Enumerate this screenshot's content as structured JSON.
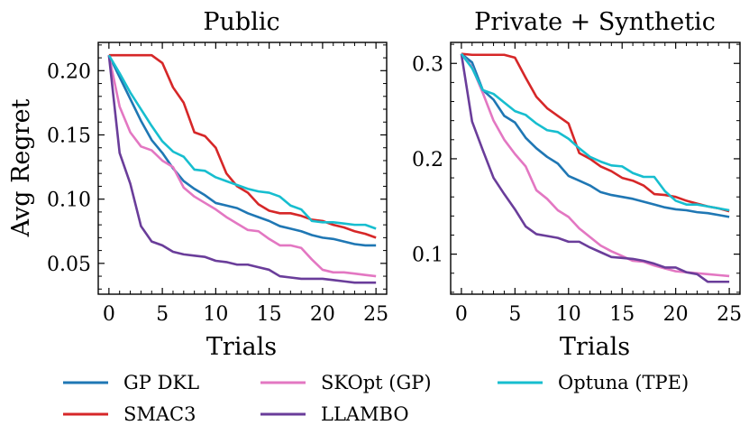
{
  "legend": {
    "items": [
      {
        "label": "GP DKL",
        "color": "#1f77b4"
      },
      {
        "label": "SMAC3",
        "color": "#d62728"
      },
      {
        "label": "SKOpt (GP)",
        "color": "#e377c2"
      },
      {
        "label": "LLAMBO",
        "color": "#6a3d9a"
      },
      {
        "label": "Optuna (TPE)",
        "color": "#17becf"
      }
    ]
  },
  "chart_data": [
    {
      "type": "line",
      "title": "Public",
      "xlabel": "Trials",
      "ylabel": "Avg Regret",
      "xlim": [
        -1,
        26
      ],
      "ylim": [
        0.026,
        0.222
      ],
      "xticks": [
        0,
        5,
        10,
        15,
        20,
        25
      ],
      "xticklabels": [
        "0",
        "5",
        "10",
        "15",
        "20",
        "25"
      ],
      "yticks": [
        0.05,
        0.1,
        0.15,
        0.2
      ],
      "yticklabels": [
        "0.05",
        "0.10",
        "0.15",
        "0.20"
      ],
      "x": [
        0,
        1,
        2,
        3,
        4,
        5,
        6,
        7,
        8,
        9,
        10,
        11,
        12,
        13,
        14,
        15,
        16,
        17,
        18,
        19,
        20,
        21,
        22,
        23,
        24,
        25
      ],
      "series": [
        {
          "name": "GP DKL",
          "color": "#1f77b4",
          "values": [
            0.212,
            0.195,
            0.178,
            0.161,
            0.146,
            0.136,
            0.124,
            0.114,
            0.108,
            0.103,
            0.097,
            0.095,
            0.093,
            0.089,
            0.086,
            0.083,
            0.079,
            0.077,
            0.075,
            0.072,
            0.07,
            0.069,
            0.067,
            0.065,
            0.064,
            0.064
          ]
        },
        {
          "name": "SMAC3",
          "color": "#d62728",
          "values": [
            0.212,
            0.212,
            0.212,
            0.212,
            0.212,
            0.206,
            0.187,
            0.175,
            0.152,
            0.149,
            0.14,
            0.12,
            0.11,
            0.105,
            0.096,
            0.091,
            0.089,
            0.089,
            0.087,
            0.084,
            0.083,
            0.08,
            0.078,
            0.075,
            0.073,
            0.07
          ]
        },
        {
          "name": "SKOpt (GP)",
          "color": "#e377c2",
          "values": [
            0.212,
            0.172,
            0.152,
            0.141,
            0.138,
            0.13,
            0.125,
            0.109,
            0.102,
            0.097,
            0.092,
            0.086,
            0.081,
            0.076,
            0.075,
            0.069,
            0.064,
            0.064,
            0.062,
            0.053,
            0.045,
            0.043,
            0.043,
            0.042,
            0.041,
            0.04
          ]
        },
        {
          "name": "LLAMBO",
          "color": "#6a3d9a",
          "values": [
            0.212,
            0.136,
            0.112,
            0.079,
            0.067,
            0.064,
            0.059,
            0.057,
            0.056,
            0.055,
            0.052,
            0.051,
            0.049,
            0.049,
            0.047,
            0.045,
            0.04,
            0.039,
            0.038,
            0.038,
            0.038,
            0.037,
            0.036,
            0.035,
            0.035,
            0.035
          ]
        },
        {
          "name": "Optuna (TPE)",
          "color": "#17becf",
          "values": [
            0.212,
            0.198,
            0.183,
            0.17,
            0.157,
            0.145,
            0.137,
            0.133,
            0.123,
            0.122,
            0.117,
            0.114,
            0.111,
            0.108,
            0.106,
            0.105,
            0.102,
            0.095,
            0.092,
            0.083,
            0.082,
            0.082,
            0.081,
            0.08,
            0.08,
            0.077
          ]
        }
      ]
    },
    {
      "type": "line",
      "title": "Private + Synthetic",
      "xlabel": "Trials",
      "ylabel": "",
      "xlim": [
        -1,
        26
      ],
      "ylim": [
        0.058,
        0.322
      ],
      "xticks": [
        0,
        5,
        10,
        15,
        20,
        25
      ],
      "xticklabels": [
        "0",
        "5",
        "10",
        "15",
        "20",
        "25"
      ],
      "yticks": [
        0.1,
        0.2,
        0.3
      ],
      "yticklabels": [
        "0.1",
        "0.2",
        "0.3"
      ],
      "x": [
        0,
        1,
        2,
        3,
        4,
        5,
        6,
        7,
        8,
        9,
        10,
        11,
        12,
        13,
        14,
        15,
        16,
        17,
        18,
        19,
        20,
        21,
        22,
        23,
        24,
        25
      ],
      "series": [
        {
          "name": "GP DKL",
          "color": "#1f77b4",
          "values": [
            0.31,
            0.301,
            0.272,
            0.262,
            0.245,
            0.238,
            0.222,
            0.211,
            0.202,
            0.195,
            0.182,
            0.177,
            0.172,
            0.165,
            0.162,
            0.16,
            0.158,
            0.155,
            0.152,
            0.149,
            0.147,
            0.146,
            0.144,
            0.143,
            0.141,
            0.139
          ]
        },
        {
          "name": "SMAC3",
          "color": "#d62728",
          "values": [
            0.31,
            0.309,
            0.309,
            0.309,
            0.309,
            0.306,
            0.285,
            0.265,
            0.253,
            0.245,
            0.237,
            0.206,
            0.2,
            0.192,
            0.187,
            0.18,
            0.177,
            0.172,
            0.163,
            0.162,
            0.16,
            0.156,
            0.153,
            0.15,
            0.148,
            0.145
          ]
        },
        {
          "name": "SKOpt (GP)",
          "color": "#e377c2",
          "values": [
            0.31,
            0.296,
            0.269,
            0.24,
            0.22,
            0.205,
            0.192,
            0.167,
            0.158,
            0.146,
            0.139,
            0.127,
            0.118,
            0.109,
            0.103,
            0.098,
            0.093,
            0.092,
            0.088,
            0.085,
            0.082,
            0.081,
            0.08,
            0.079,
            0.078,
            0.077
          ]
        },
        {
          "name": "LLAMBO",
          "color": "#6a3d9a",
          "values": [
            0.31,
            0.239,
            0.209,
            0.18,
            0.163,
            0.147,
            0.129,
            0.121,
            0.119,
            0.117,
            0.113,
            0.113,
            0.107,
            0.102,
            0.097,
            0.096,
            0.095,
            0.093,
            0.09,
            0.086,
            0.086,
            0.081,
            0.079,
            0.071,
            0.071,
            0.071
          ]
        },
        {
          "name": "Optuna (TPE)",
          "color": "#17becf",
          "values": [
            0.31,
            0.295,
            0.272,
            0.268,
            0.259,
            0.25,
            0.246,
            0.237,
            0.23,
            0.228,
            0.221,
            0.211,
            0.202,
            0.197,
            0.193,
            0.192,
            0.185,
            0.181,
            0.181,
            0.166,
            0.156,
            0.152,
            0.152,
            0.15,
            0.148,
            0.146
          ]
        }
      ]
    }
  ]
}
